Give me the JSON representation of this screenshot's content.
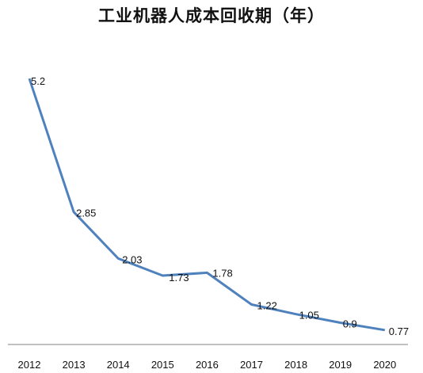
{
  "chart_data": {
    "type": "line",
    "title": "工业机器人成本回收期（年）",
    "xlabel": "",
    "ylabel": "",
    "categories": [
      "2012",
      "2013",
      "2014",
      "2015",
      "2016",
      "2017",
      "2018",
      "2019",
      "2020"
    ],
    "series": [
      {
        "values": [
          5.2,
          2.85,
          2.03,
          1.73,
          1.78,
          1.22,
          1.05,
          0.9,
          0.77
        ]
      }
    ],
    "data_labels": [
      "5.2",
      "2.85",
      "2.03",
      "1.73",
      "1.78",
      "1.22",
      "1.05",
      "0.9",
      "0.77"
    ],
    "ylim": [
      0,
      6
    ],
    "grid": false,
    "legend": "none",
    "colors": {
      "line": "#4f81bd",
      "axis": "#808080"
    }
  }
}
